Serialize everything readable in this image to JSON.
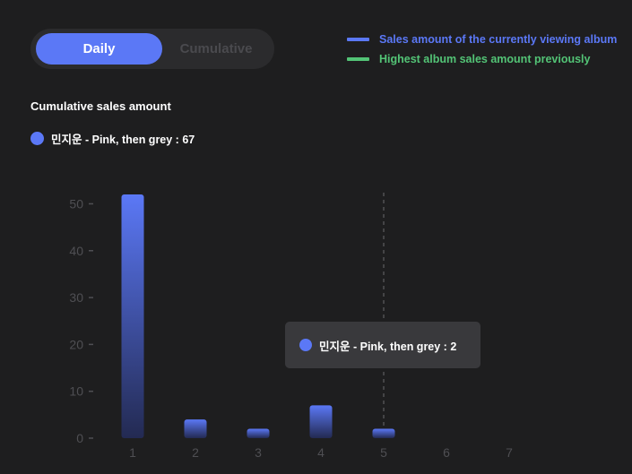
{
  "toggle": {
    "daily_label": "Daily",
    "cumulative_label": "Cumulative"
  },
  "legend": {
    "current": {
      "label": "Sales amount of the currently viewing album",
      "color": "#5b78f6"
    },
    "highest": {
      "label": "Highest album sales amount previously",
      "color": "#53c476"
    }
  },
  "section_title": "Cumulative sales amount",
  "summary": {
    "text": "민지운 - Pink, then grey : 67",
    "color": "#5b78f6"
  },
  "tooltip": {
    "text": "민지운 - Pink, then grey : 2",
    "color": "#5b78f6"
  },
  "chart_data": {
    "type": "bar",
    "categories": [
      "1",
      "2",
      "3",
      "4",
      "5",
      "6",
      "7"
    ],
    "values": [
      52,
      4,
      2,
      7,
      2,
      null,
      null
    ],
    "yticks": [
      0,
      10,
      20,
      30,
      40,
      50
    ],
    "ylim": [
      0,
      52
    ],
    "highlighted_category": "5",
    "bar_color": "#5b78f6",
    "grid": false
  }
}
